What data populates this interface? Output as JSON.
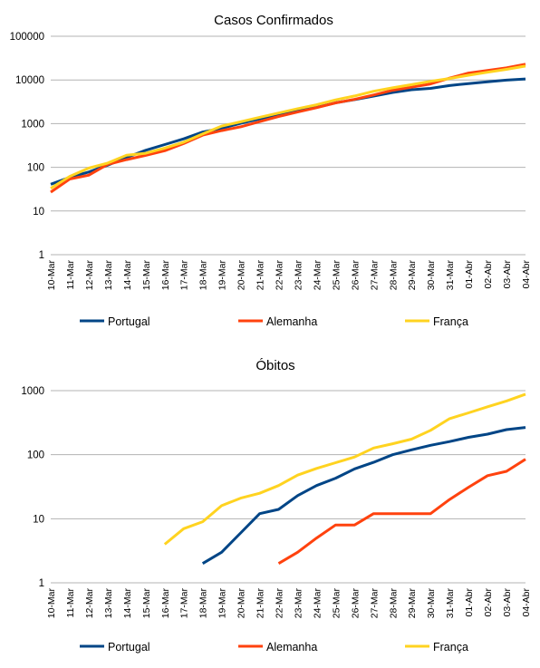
{
  "chart_data": [
    {
      "type": "line",
      "title": "Casos Confirmados",
      "yscale": "log",
      "ylim": [
        1,
        100000
      ],
      "yticks": [
        "1",
        "10",
        "100",
        "1000",
        "10000",
        "100000"
      ],
      "categories": [
        "10-Mar",
        "11-Mar",
        "12-Mar",
        "13-Mar",
        "14-Mar",
        "15-Mar",
        "16-Mar",
        "17-Mar",
        "18-Mar",
        "19-Mar",
        "20-Mar",
        "21-Mar",
        "22-Mar",
        "23-Mar",
        "24-Mar",
        "25-Mar",
        "26-Mar",
        "27-Mar",
        "28-Mar",
        "29-Mar",
        "30-Mar",
        "31-Mar",
        "01-Abr",
        "02-Abr",
        "03-Abr",
        "04-Abr"
      ],
      "series": [
        {
          "name": "Portugal",
          "color": "#004586",
          "values": [
            41,
            59,
            78,
            112,
            169,
            245,
            331,
            448,
            642,
            785,
            1020,
            1280,
            1600,
            2060,
            2362,
            2995,
            3544,
            4268,
            5170,
            5962,
            6408,
            7443,
            8251,
            9034,
            9886,
            10524
          ]
        },
        {
          "name": "Alemanha",
          "color": "#ff420e",
          "values": [
            27,
            54,
            66,
            117,
            150,
            188,
            240,
            349,
            545,
            692,
            847,
            1110,
            1460,
            1840,
            2320,
            2990,
            3600,
            4520,
            5800,
            6840,
            8120,
            11000,
            14400,
            16500,
            18900,
            23000
          ]
        },
        {
          "name": "França",
          "color": "#ffd320",
          "values": [
            33,
            62,
            96,
            125,
            190,
            210,
            275,
            375,
            580,
            880,
            1100,
            1400,
            1750,
            2200,
            2700,
            3500,
            4300,
            5500,
            6600,
            7800,
            9300,
            10800,
            12800,
            15000,
            17500,
            20800
          ]
        }
      ],
      "legend_position": "bottom"
    },
    {
      "type": "line",
      "title": "Óbitos",
      "yscale": "log",
      "ylim": [
        1,
        1000
      ],
      "yticks": [
        "1",
        "10",
        "100",
        "1000"
      ],
      "categories": [
        "10-Mar",
        "11-Mar",
        "12-Mar",
        "13-Mar",
        "14-Mar",
        "15-Mar",
        "16-Mar",
        "17-Mar",
        "18-Mar",
        "19-Mar",
        "20-Mar",
        "21-Mar",
        "22-Mar",
        "23-Mar",
        "24-Mar",
        "25-Mar",
        "26-Mar",
        "27-Mar",
        "28-Mar",
        "29-Mar",
        "30-Mar",
        "31-Mar",
        "01-Abr",
        "02-Abr",
        "03-Abr",
        "04-Abr"
      ],
      "series": [
        {
          "name": "Portugal",
          "color": "#004586",
          "values": [
            null,
            null,
            null,
            null,
            null,
            null,
            null,
            null,
            2,
            3,
            6,
            12,
            14,
            23,
            33,
            43,
            60,
            76,
            100,
            119,
            140,
            160,
            187,
            209,
            246,
            266
          ]
        },
        {
          "name": "Alemanha",
          "color": "#ff420e",
          "values": [
            null,
            null,
            null,
            null,
            null,
            null,
            null,
            null,
            null,
            null,
            null,
            null,
            2,
            3,
            5,
            8,
            8,
            12,
            12,
            12,
            12,
            20,
            31,
            47,
            55,
            85
          ]
        },
        {
          "name": "França",
          "color": "#ffd320",
          "values": [
            null,
            null,
            null,
            null,
            null,
            null,
            4,
            7,
            9,
            16,
            21,
            25,
            33,
            48,
            61,
            75,
            92,
            127,
            148,
            175,
            240,
            365,
            450,
            560,
            690,
            880
          ]
        }
      ],
      "legend_position": "bottom"
    }
  ]
}
